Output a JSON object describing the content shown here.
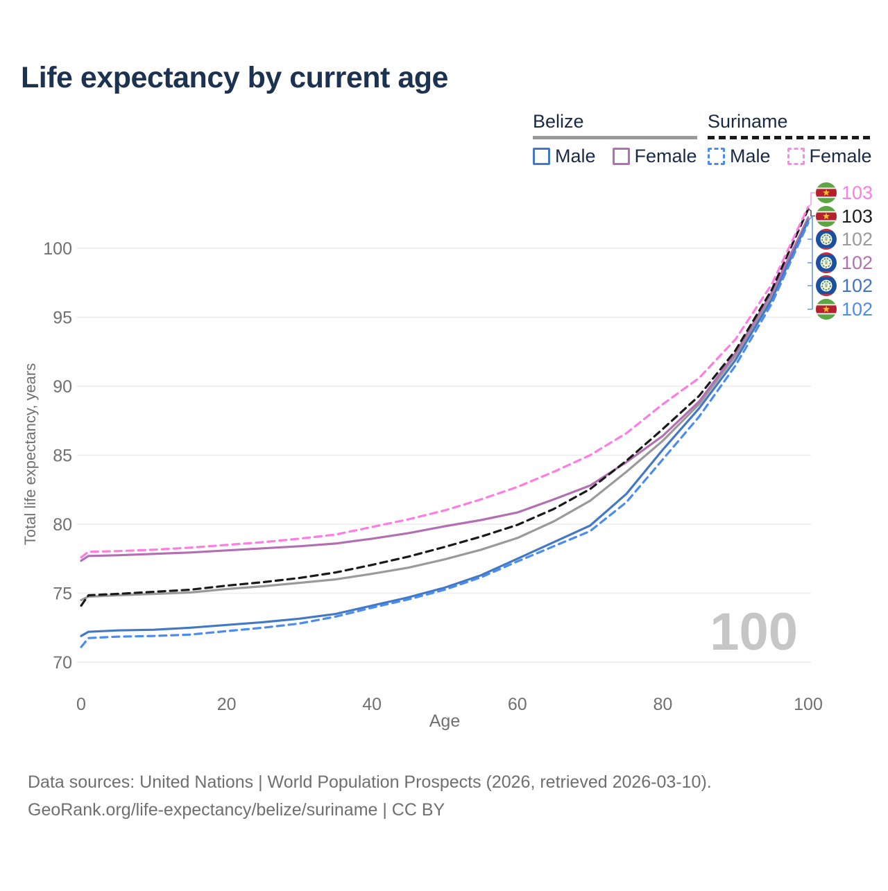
{
  "chart_data": {
    "type": "line",
    "title": "Life expectancy by current age",
    "xlabel": "Age",
    "ylabel": "Total life expectancy, years",
    "x_ticks": [
      0,
      20,
      40,
      60,
      80,
      100
    ],
    "y_ticks": [
      70,
      75,
      80,
      85,
      90,
      95,
      100
    ],
    "xlim": [
      0,
      100
    ],
    "ylim": [
      69.5,
      103.5
    ],
    "grid": "horizontal-only",
    "legend_position": "top-right",
    "watermark": "100",
    "x": [
      0,
      1,
      5,
      10,
      15,
      20,
      25,
      30,
      35,
      40,
      45,
      50,
      55,
      60,
      65,
      70,
      75,
      80,
      85,
      90,
      95,
      100
    ],
    "series": [
      {
        "name": "Belize (all)",
        "country": "Belize",
        "sex": "All",
        "color": "#9a9a9a",
        "dash": false,
        "values": [
          74.5,
          74.75,
          74.85,
          74.95,
          75.05,
          75.3,
          75.5,
          75.75,
          76.0,
          76.4,
          76.85,
          77.45,
          78.15,
          79.0,
          80.2,
          81.7,
          83.8,
          86.05,
          88.7,
          92.2,
          96.6,
          102.25
        ],
        "end_label": "102"
      },
      {
        "name": "Belize Female",
        "country": "Belize",
        "sex": "Female",
        "color": "#b26fb2",
        "dash": false,
        "values": [
          77.35,
          77.7,
          77.75,
          77.85,
          77.95,
          78.1,
          78.25,
          78.4,
          78.6,
          78.95,
          79.35,
          79.85,
          80.3,
          80.85,
          81.8,
          82.8,
          84.5,
          86.4,
          88.9,
          92.4,
          96.8,
          102.15
        ],
        "end_label": "102"
      },
      {
        "name": "Belize Male",
        "country": "Belize",
        "sex": "Male",
        "color": "#4379c4",
        "dash": false,
        "values": [
          71.9,
          72.2,
          72.3,
          72.35,
          72.5,
          72.7,
          72.9,
          73.15,
          73.5,
          74.1,
          74.7,
          75.4,
          76.3,
          77.5,
          78.7,
          79.9,
          82.2,
          85.4,
          88.4,
          91.9,
          96.3,
          102.0
        ],
        "end_label": "102"
      },
      {
        "name": "Suriname (all)",
        "country": "Suriname",
        "sex": "All",
        "color": "#1a1a1a",
        "dash": true,
        "values": [
          74.1,
          74.85,
          74.95,
          75.1,
          75.25,
          75.55,
          75.8,
          76.1,
          76.5,
          77.05,
          77.65,
          78.35,
          79.1,
          79.95,
          81.1,
          82.55,
          84.6,
          86.9,
          89.3,
          92.6,
          97.0,
          102.85
        ],
        "end_label": "103"
      },
      {
        "name": "Suriname Male",
        "country": "Suriname",
        "sex": "Male",
        "color": "#4a8cf0",
        "dash": true,
        "values": [
          71.1,
          71.75,
          71.85,
          71.9,
          72.0,
          72.25,
          72.5,
          72.8,
          73.3,
          73.95,
          74.55,
          75.25,
          76.15,
          77.3,
          78.4,
          79.5,
          81.6,
          84.7,
          87.8,
          91.5,
          96.0,
          101.85
        ],
        "end_label": "102"
      },
      {
        "name": "Suriname Female",
        "country": "Suriname",
        "sex": "Female",
        "color": "#ff7ce0",
        "dash": true,
        "values": [
          77.6,
          78.0,
          78.05,
          78.15,
          78.3,
          78.5,
          78.7,
          78.95,
          79.25,
          79.8,
          80.35,
          81.0,
          81.8,
          82.7,
          83.8,
          85.0,
          86.6,
          88.7,
          90.6,
          93.4,
          97.4,
          103.0
        ],
        "end_label": "103"
      }
    ],
    "end_labels": [
      {
        "value": "103",
        "color": "#ff7ce0",
        "flag": "suriname",
        "series": "Suriname Female"
      },
      {
        "value": "103",
        "color": "#1a1a1a",
        "flag": "suriname",
        "series": "Suriname (all)"
      },
      {
        "value": "102",
        "color": "#9a9a9a",
        "flag": "belize",
        "series": "Belize (all)"
      },
      {
        "value": "102",
        "color": "#b26fb2",
        "flag": "belize",
        "series": "Belize Female"
      },
      {
        "value": "102",
        "color": "#3f74c2",
        "flag": "belize",
        "series": "Belize Male"
      },
      {
        "value": "102",
        "color": "#4a8cf0",
        "flag": "suriname",
        "series": "Suriname Male"
      }
    ],
    "colors": {
      "grid": "#ebebeb",
      "axis_text": "#707070",
      "title": "#1c3250",
      "watermark": "#c6c6c6",
      "legend_text": "#1b2a44"
    }
  },
  "legend": {
    "groups": [
      {
        "name": "Belize",
        "line_style": "solid",
        "line_color": "#9a9a9a",
        "items": [
          {
            "label": "Male",
            "color": "#4379c4",
            "dashed": false
          },
          {
            "label": "Female",
            "color": "#b26fb2",
            "dashed": false
          }
        ]
      },
      {
        "name": "Suriname",
        "line_style": "dashed",
        "line_color": "#1a1a1a",
        "items": [
          {
            "label": "Male",
            "color": "#4a8cf0",
            "dashed": true
          },
          {
            "label": "Female",
            "color": "#ff85e8",
            "dashed": true
          }
        ]
      }
    ]
  },
  "footer": {
    "line1": "Data sources: United Nations | World Population Prospects (2026, retrieved 2026-03-10).",
    "line2": "GeoRank.org/life-expectancy/belize/suriname | CC BY"
  }
}
